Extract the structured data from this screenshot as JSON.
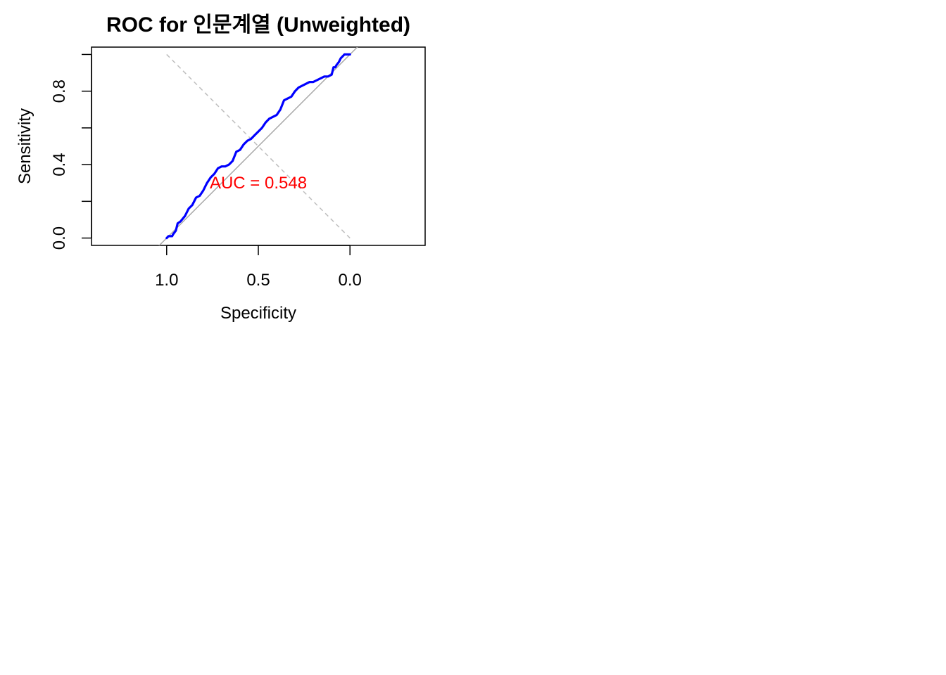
{
  "chart_data": {
    "type": "line",
    "title": "ROC for 인문계열 (Unweighted)",
    "xlabel": "Specificity",
    "ylabel": "Sensitivity",
    "xlim": [
      1.41,
      -0.41
    ],
    "ylim": [
      -0.04,
      1.04
    ],
    "x_reversed": true,
    "x_ticks": [
      1.0,
      0.5,
      0.0
    ],
    "x_tick_labels": [
      "1.0",
      "0.5",
      "0.0"
    ],
    "y_ticks": [
      0.0,
      0.2,
      0.4,
      0.6,
      0.8,
      1.0
    ],
    "y_tick_labels": [
      "0.0",
      "",
      "0.4",
      "",
      "0.8",
      ""
    ],
    "annotation": {
      "text": "AUC = 0.548",
      "x": 0.5,
      "y": 0.3,
      "color": "#ff0000"
    },
    "series": [
      {
        "color": "#0000ff",
        "specificity": [
          1.0,
          0.99,
          0.97,
          0.965,
          0.95,
          0.94,
          0.925,
          0.9,
          0.88,
          0.86,
          0.84,
          0.82,
          0.8,
          0.78,
          0.76,
          0.74,
          0.72,
          0.7,
          0.68,
          0.66,
          0.64,
          0.62,
          0.6,
          0.58,
          0.56,
          0.54,
          0.52,
          0.5,
          0.48,
          0.46,
          0.44,
          0.42,
          0.4,
          0.38,
          0.36,
          0.34,
          0.32,
          0.3,
          0.28,
          0.26,
          0.24,
          0.22,
          0.2,
          0.18,
          0.16,
          0.14,
          0.12,
          0.1,
          0.09,
          0.08,
          0.075,
          0.06,
          0.05,
          0.04,
          0.03,
          0.02,
          0.0
        ],
        "sensitivity": [
          0.0,
          0.01,
          0.01,
          0.02,
          0.04,
          0.08,
          0.09,
          0.12,
          0.16,
          0.18,
          0.22,
          0.23,
          0.26,
          0.3,
          0.33,
          0.35,
          0.38,
          0.39,
          0.39,
          0.4,
          0.42,
          0.47,
          0.48,
          0.51,
          0.53,
          0.54,
          0.56,
          0.58,
          0.6,
          0.63,
          0.65,
          0.66,
          0.67,
          0.7,
          0.75,
          0.76,
          0.77,
          0.8,
          0.82,
          0.83,
          0.84,
          0.85,
          0.85,
          0.86,
          0.87,
          0.88,
          0.88,
          0.89,
          0.93,
          0.93,
          0.94,
          0.96,
          0.98,
          0.99,
          1.0,
          1.0,
          1.0
        ]
      }
    ],
    "reference_line": {
      "color": "#a9a9a9",
      "from": [
        1.0,
        0.0
      ],
      "to": [
        0.0,
        1.0
      ]
    },
    "crossed_line": {
      "color": "#bebebe",
      "style": "dashed",
      "from": [
        1.0,
        1.0
      ],
      "to": [
        0.0,
        0.0
      ]
    },
    "grid": false,
    "legend": "none"
  }
}
